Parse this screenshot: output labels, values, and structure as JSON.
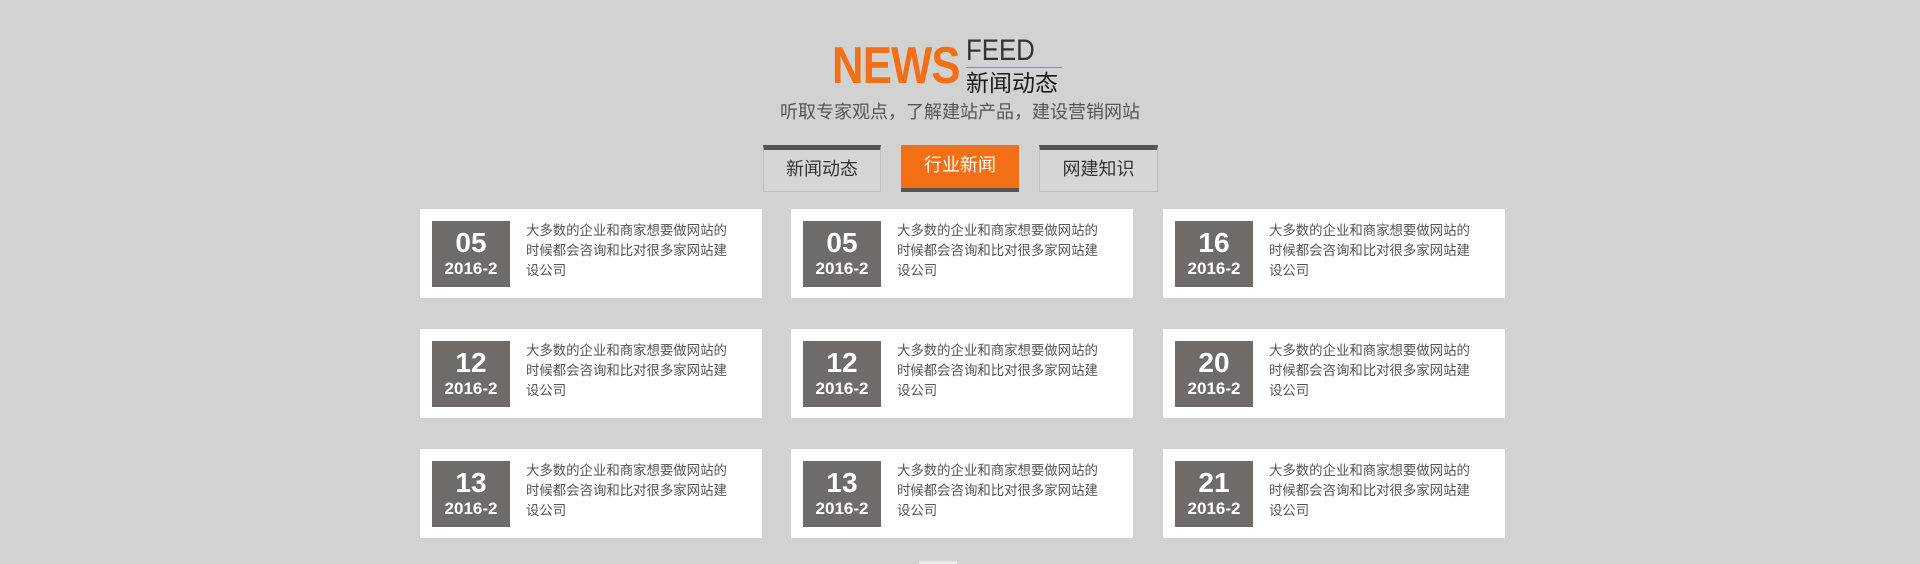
{
  "heading": {
    "news_word": "NEWS",
    "feed_word": "FEED",
    "title_cn": "新闻动态",
    "subtitle": "听取专家观点，了解建站产品，建设营销网站"
  },
  "tabs": [
    {
      "label": "新闻动态",
      "active": false
    },
    {
      "label": "行业新闻",
      "active": true
    },
    {
      "label": "网建知识",
      "active": false
    }
  ],
  "news_items": [
    {
      "day": "05",
      "ym": "2016-2",
      "summary": "大多数的企业和商家想要做网站的时候都会咨询和比对很多家网站建设公司"
    },
    {
      "day": "05",
      "ym": "2016-2",
      "summary": "大多数的企业和商家想要做网站的时候都会咨询和比对很多家网站建设公司"
    },
    {
      "day": "16",
      "ym": "2016-2",
      "summary": "大多数的企业和商家想要做网站的时候都会咨询和比对很多家网站建设公司"
    },
    {
      "day": "12",
      "ym": "2016-2",
      "summary": "大多数的企业和商家想要做网站的时候都会咨询和比对很多家网站建设公司"
    },
    {
      "day": "12",
      "ym": "2016-2",
      "summary": "大多数的企业和商家想要做网站的时候都会咨询和比对很多家网站建设公司"
    },
    {
      "day": "20",
      "ym": "2016-2",
      "summary": "大多数的企业和商家想要做网站的时候都会咨询和比对很多家网站建设公司"
    },
    {
      "day": "13",
      "ym": "2016-2",
      "summary": "大多数的企业和商家想要做网站的时候都会咨询和比对很多家网站建设公司"
    },
    {
      "day": "13",
      "ym": "2016-2",
      "summary": "大多数的企业和商家想要做网站的时候都会咨询和比对很多家网站建设公司"
    },
    {
      "day": "21",
      "ym": "2016-2",
      "summary": "大多数的企业和商家想要做网站的时候都会咨询和比对很多家网站建设公司"
    }
  ],
  "colors": {
    "accent": "#f26f16",
    "date_box": "#6e6b68",
    "background": "#d2d2d2",
    "card": "#ffffff"
  }
}
